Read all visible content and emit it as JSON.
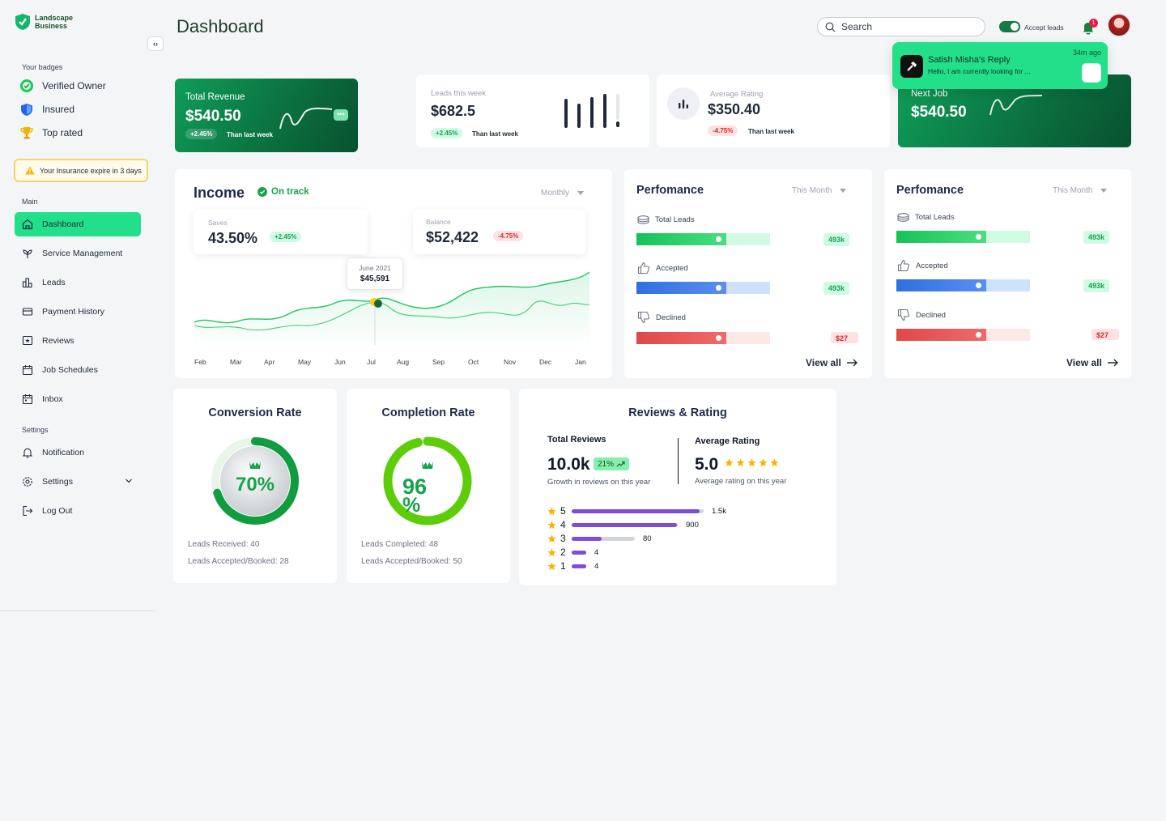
{
  "brand": {
    "line1": "Landscape",
    "line2": "Business"
  },
  "sidebar": {
    "badges_label": "Your badges",
    "badges": [
      {
        "label": "Verified Owner",
        "icon": "verified-icon"
      },
      {
        "label": "Insured",
        "icon": "shield-icon"
      },
      {
        "label": "Top rated",
        "icon": "trophy-icon"
      }
    ],
    "alert": "Your Insurance expire in 3 days",
    "main_label": "Main",
    "main_items": [
      {
        "label": "Dashboard",
        "icon": "home-icon",
        "active": true
      },
      {
        "label": "Service Management",
        "icon": "plant-icon"
      },
      {
        "label": "Leads",
        "icon": "chart-icon"
      },
      {
        "label": "Payment History",
        "icon": "payment-icon"
      },
      {
        "label": "Reviews",
        "icon": "review-icon"
      },
      {
        "label": "Job Schedules",
        "icon": "calendar-icon"
      },
      {
        "label": "Inbox",
        "icon": "inbox-icon"
      }
    ],
    "settings_label": "Settings",
    "settings_items": [
      {
        "label": "Notification",
        "icon": "bell-icon"
      },
      {
        "label": "Settings",
        "icon": "gear-icon"
      },
      {
        "label": "Log Out",
        "icon": "logout-icon"
      }
    ]
  },
  "header": {
    "title": "Dashboard",
    "search_placeholder": "Search",
    "accept_leads": "Accept leads",
    "notification_count": "1"
  },
  "notification": {
    "title": "Satish Misha's Reply",
    "body": "Hello, I am currently looking for ...",
    "time": "34m ago"
  },
  "stats": {
    "total_revenue": {
      "label": "Total Revenue",
      "value": "$540.50",
      "change": "+2.45%",
      "than": "Than last week"
    },
    "leads_week": {
      "label": "Leads this week",
      "value": "$682.5",
      "change": "+2.45%",
      "than": "Than last week"
    },
    "avg_rating": {
      "label": "Average Rating",
      "value": "$350.40",
      "change": "-4.75%",
      "than": "Than last week"
    },
    "next_job": {
      "label": "Next Job",
      "value": "$540.50"
    }
  },
  "income": {
    "title": "Income",
    "status": "On track",
    "period": "Monthly",
    "saves_label": "Saves",
    "saves_value": "43.50%",
    "saves_change": "+2.45%",
    "balance_label": "Balance",
    "balance_value": "$52,422",
    "balance_change": "-4.75%",
    "tooltip_date": "June 2021",
    "tooltip_value": "$45,591",
    "months": [
      "Feb",
      "Mar",
      "Apr",
      "May",
      "Jun",
      "Jul",
      "Aug",
      "Sep",
      "Oct",
      "Nov",
      "Dec",
      "Jan"
    ]
  },
  "performance": [
    {
      "title": "Perfomance",
      "period": "This Month",
      "items": [
        {
          "label": "Total Leads",
          "value": "493k",
          "color": "green"
        },
        {
          "label": "Accepted",
          "value": "493k",
          "color": "blue"
        },
        {
          "label": "Declined",
          "value": "$27",
          "color": "red"
        }
      ],
      "view_all": "View all"
    },
    {
      "title": "Perfomance",
      "period": "This Month",
      "items": [
        {
          "label": "Total Leads",
          "value": "493k",
          "color": "green"
        },
        {
          "label": "Accepted",
          "value": "493k",
          "color": "blue"
        },
        {
          "label": "Declined",
          "value": "$27",
          "color": "red"
        }
      ],
      "view_all": "View all"
    }
  ],
  "conversion": {
    "title": "Conversion Rate",
    "value": "70%",
    "percent": 70,
    "received": "Leads Received: 40",
    "accepted": "Leads Accepted/Booked: 28"
  },
  "completion": {
    "title": "Completion Rate",
    "value_a": "96",
    "value_b": "%",
    "percent": 96,
    "completed": "Leads Completed: 48",
    "accepted": "Leads Accepted/Booked: 50"
  },
  "reviews": {
    "title": "Reviews & Rating",
    "total_label": "Total Reviews",
    "total_value": "10.0k",
    "growth": "21%",
    "growth_sub": "Growth in reviews on this year",
    "avg_label": "Average Rating",
    "avg_value": "5.0",
    "avg_sub": "Average rating on this year",
    "rows": [
      {
        "star": "5",
        "count": "1.5k",
        "fill": 0.97
      },
      {
        "star": "4",
        "count": "900",
        "fill": 0.99
      },
      {
        "star": "3",
        "count": "80",
        "fill": 0.47
      },
      {
        "star": "2",
        "count": "4",
        "fill": 1.0
      },
      {
        "star": "1",
        "count": "4",
        "fill": 1.0
      }
    ]
  },
  "colors": {
    "accent": "#22e08a",
    "brand_dark": "#0b6e3e",
    "purple": "#7c4dd6"
  }
}
